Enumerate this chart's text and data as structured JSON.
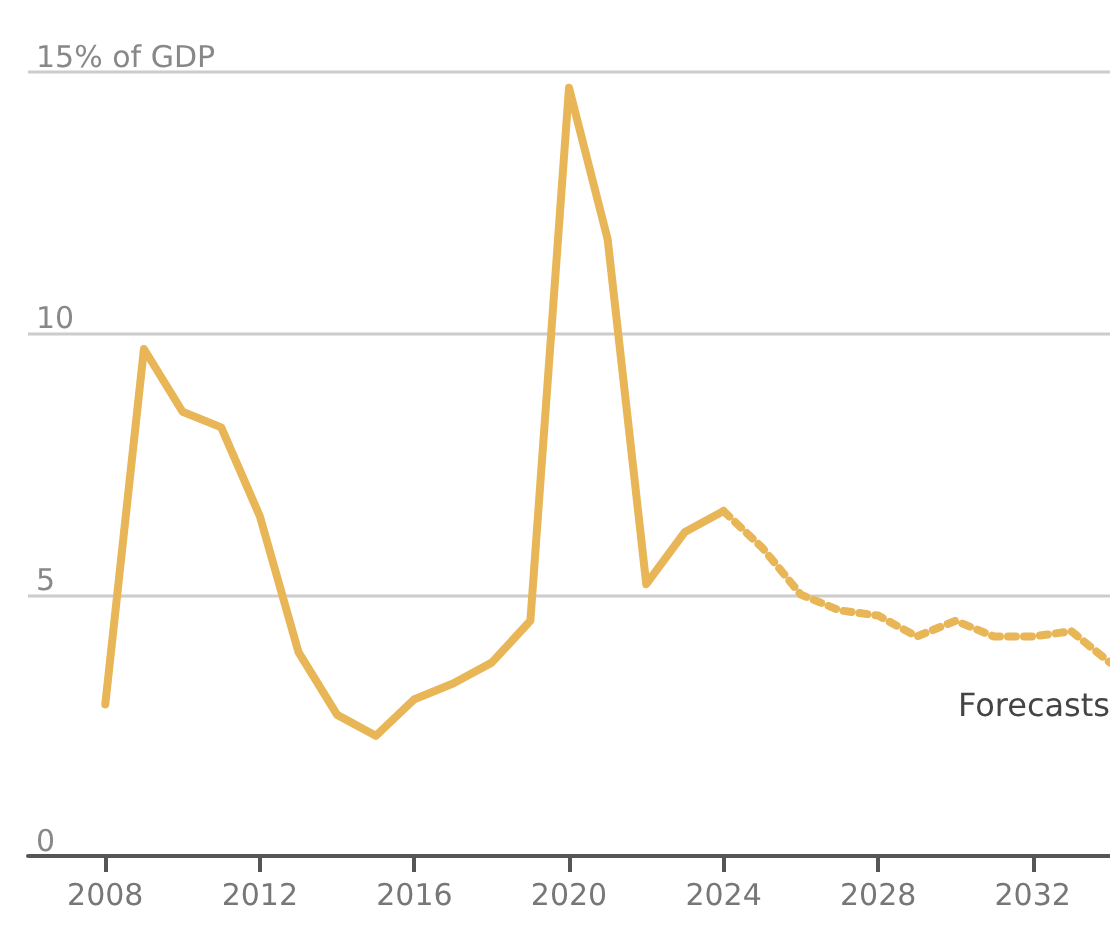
{
  "chart_data": {
    "type": "line",
    "xlim": [
      2006,
      2034
    ],
    "xticks": [
      2008,
      2012,
      2016,
      2020,
      2024,
      2028,
      2032
    ],
    "ylim": [
      0,
      15
    ],
    "yticks": [
      0,
      5,
      10,
      {
        "value": 15,
        "label": "15% of GDP"
      }
    ],
    "grid": "y",
    "legend": false,
    "marker": "none",
    "series": [
      {
        "color": "#e8b656",
        "line_style": "solid",
        "x": [
          2008,
          2009,
          2010,
          2011,
          2012,
          2013,
          2014,
          2015,
          2016,
          2017,
          2018,
          2019,
          2020,
          2021,
          2022,
          2023,
          2024
        ],
        "values": [
          2.9,
          9.7,
          8.5,
          8.2,
          6.5,
          3.9,
          2.7,
          2.3,
          3.0,
          3.3,
          3.7,
          4.5,
          14.7,
          11.8,
          5.2,
          6.2,
          6.6
        ]
      },
      {
        "name": "Forecasts",
        "color": "#e8b656",
        "line_style": "dotted",
        "x": [
          2024,
          2025,
          2026,
          2027,
          2028,
          2029,
          2030,
          2031,
          2032,
          2033,
          2034
        ],
        "values": [
          6.6,
          5.9,
          5.0,
          4.7,
          4.6,
          4.2,
          4.5,
          4.2,
          4.2,
          4.3,
          3.7
        ]
      }
    ]
  }
}
